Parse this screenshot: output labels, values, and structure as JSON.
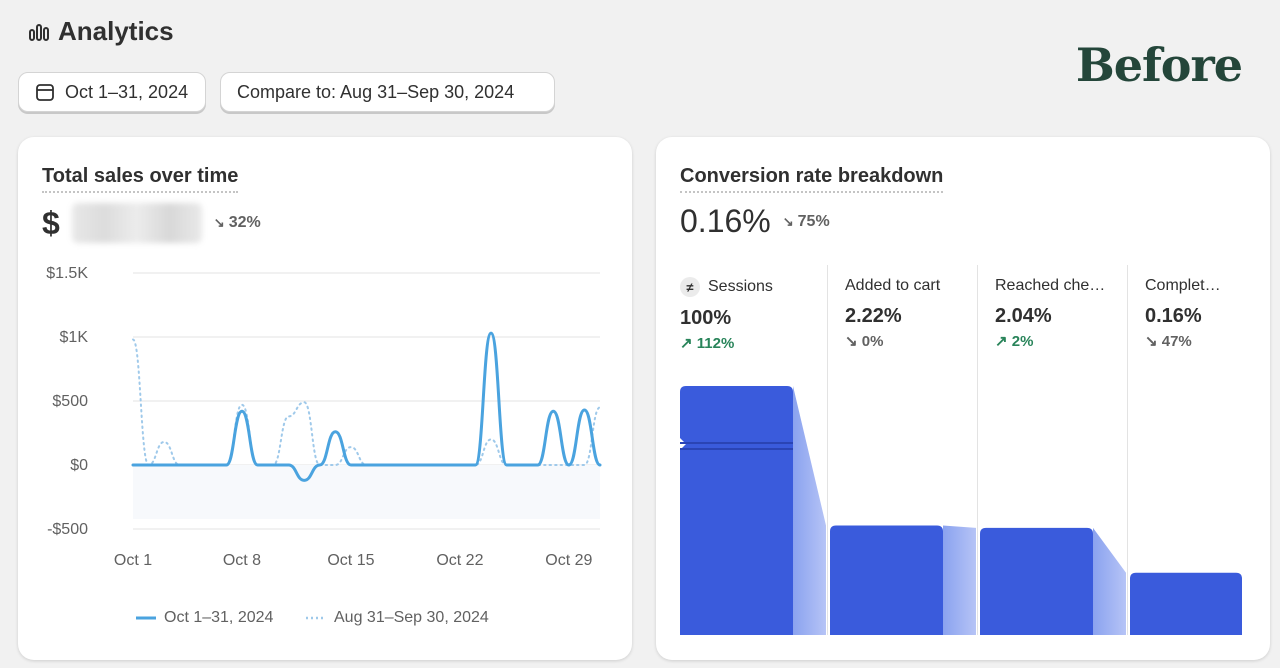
{
  "header": {
    "title": "Analytics",
    "watermark": "Before"
  },
  "toolbar": {
    "date_range": "Oct 1–31, 2024",
    "compare": "Compare to: Aug 31–Sep 30, 2024"
  },
  "sales": {
    "title": "Total sales over time",
    "currency": "$",
    "change": "32%",
    "change_dir": "down",
    "legend": [
      "Oct 1–31, 2024",
      "Aug 31–Sep 30, 2024"
    ],
    "chart_data": {
      "type": "line",
      "xlabel": "",
      "ylabel": "",
      "ylim": [
        -500,
        1500
      ],
      "y_ticks": [
        "$1.5K",
        "$1K",
        "$500",
        "$0",
        "-$500"
      ],
      "x_ticks": [
        "Oct 1",
        "Oct 8",
        "Oct 15",
        "Oct 22",
        "Oct 29"
      ],
      "x": [
        1,
        2,
        3,
        4,
        5,
        6,
        7,
        8,
        9,
        10,
        11,
        12,
        13,
        14,
        15,
        16,
        17,
        18,
        19,
        20,
        21,
        22,
        23,
        24,
        25,
        26,
        27,
        28,
        29,
        30,
        31
      ],
      "series": [
        {
          "name": "Oct 1–31, 2024",
          "color": "#4aa3df",
          "style": "solid",
          "values": [
            0,
            0,
            0,
            0,
            0,
            0,
            0,
            420,
            0,
            0,
            0,
            -120,
            0,
            260,
            0,
            0,
            0,
            0,
            0,
            0,
            0,
            0,
            0,
            1030,
            0,
            0,
            0,
            420,
            0,
            430,
            0
          ]
        },
        {
          "name": "Aug 31–Sep 30, 2024",
          "color": "#9fc9ea",
          "style": "dotted",
          "values": [
            980,
            0,
            180,
            0,
            0,
            0,
            0,
            470,
            0,
            0,
            380,
            490,
            0,
            0,
            140,
            0,
            0,
            0,
            0,
            0,
            0,
            0,
            0,
            200,
            0,
            0,
            0,
            0,
            0,
            0,
            450
          ]
        }
      ]
    }
  },
  "conversion": {
    "title": "Conversion rate breakdown",
    "value": "0.16%",
    "change": "75%",
    "stages": [
      {
        "label": "Sessions",
        "pct": "100%",
        "change": "112%",
        "dir": "up",
        "level": 1.0
      },
      {
        "label": "Added to cart",
        "pct": "2.22%",
        "change": "0%",
        "dir": "down",
        "level": 0.44
      },
      {
        "label": "Reached che…",
        "pct": "2.04%",
        "change": "2%",
        "dir": "up",
        "level": 0.43
      },
      {
        "label": "Complet…",
        "pct": "0.16%",
        "change": "47%",
        "dir": "down",
        "level": 0.25
      }
    ],
    "bar_color": "#3a5bdc"
  }
}
